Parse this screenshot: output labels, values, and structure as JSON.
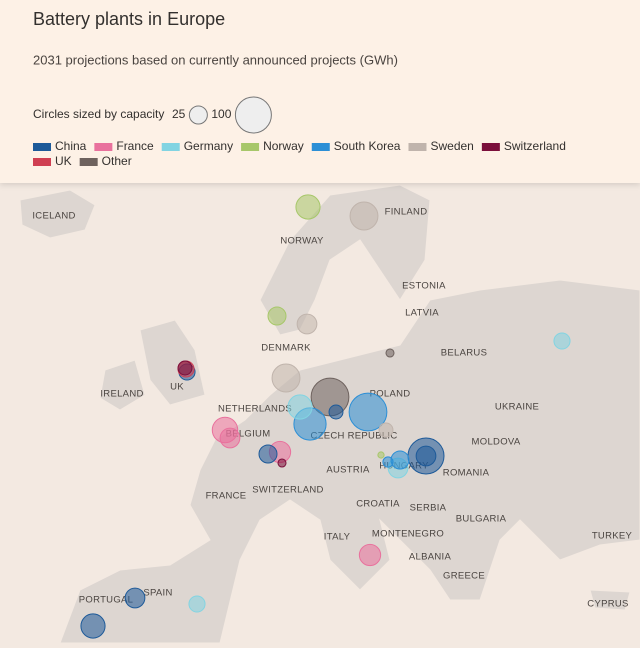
{
  "chart_data": {
    "type": "bubble-map",
    "title": "Battery plants in Europe",
    "subtitle": "2031 projections based on currently announced projects (GWh)",
    "size_label": "Circles sized by capacity",
    "size_ticks": [
      25,
      100
    ],
    "series": [
      {
        "name": "China",
        "color": "#1d5a99",
        "values": [
          100,
          30,
          30,
          45,
          15,
          25,
          20
        ]
      },
      {
        "name": "France",
        "color": "#e9719d",
        "values": [
          50,
          30,
          35,
          35
        ]
      },
      {
        "name": "Germany",
        "color": "#82d4e2",
        "values": [
          45,
          20,
          20,
          30
        ]
      },
      {
        "name": "Norway",
        "color": "#a7c76a",
        "values": [
          45,
          25,
          3
        ]
      },
      {
        "name": "South Korea",
        "color": "#2c8fd6",
        "values": [
          110,
          80,
          25,
          8
        ]
      },
      {
        "name": "Sweden",
        "color": "#c0b4ac",
        "values": [
          60,
          30,
          60,
          15
        ]
      },
      {
        "name": "Switzerland",
        "color": "#7b0f3b",
        "values": [
          15,
          5
        ]
      },
      {
        "name": "UK",
        "color": "#cf3f52",
        "values": [
          20
        ]
      },
      {
        "name": "Other",
        "color": "#6e625e",
        "values": [
          110,
          5
        ]
      }
    ],
    "places": [
      "ICELAND",
      "FINLAND",
      "NORWAY",
      "ESTONIA",
      "LATVIA",
      "DENMARK",
      "BELARUS",
      "IRELAND",
      "UK",
      "POLAND",
      "NETHERLANDS",
      "UKRAINE",
      "BELGIUM",
      "CZECH REPUBLIC",
      "MOLDOVA",
      "HUNGARY",
      "AUSTRIA",
      "ROMANIA",
      "SWITZERLAND",
      "FRANCE",
      "CROATIA",
      "SERBIA",
      "BULGARIA",
      "MONTENEGRO",
      "TURKEY",
      "ITALY",
      "ALBANIA",
      "GREECE",
      "SPAIN",
      "PORTUGAL",
      "CYPRUS"
    ]
  }
}
